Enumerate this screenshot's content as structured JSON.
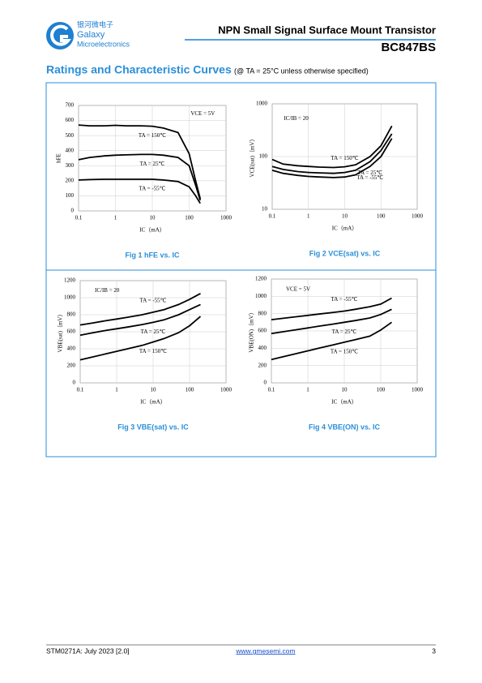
{
  "header": {
    "logo_cn": "银河微电子",
    "logo_en1": "Galaxy",
    "logo_en2": "Microelectronics",
    "title": "NPN Small Signal Surface Mount Transistor",
    "part": "BC847BS"
  },
  "section": {
    "title": "Ratings and Characteristic Curves",
    "condition": "(@ TA = 25°C unless otherwise specified)"
  },
  "chart_data": [
    {
      "type": "line",
      "title": "Fig 1   hFE vs. IC",
      "x_label": "IC（mA）",
      "y_label": "hFE",
      "annotation": "VCE = 5V",
      "xscale": "log",
      "xlim": [
        0.1,
        1000
      ],
      "xticks": [
        0.1,
        1,
        10,
        100,
        1000
      ],
      "ylim": [
        0,
        700
      ],
      "yticks": [
        0,
        100,
        200,
        300,
        400,
        500,
        600,
        700
      ],
      "grid": true,
      "x": [
        0.1,
        0.2,
        0.5,
        1,
        2,
        5,
        10,
        20,
        50,
        100,
        150,
        200
      ],
      "series": [
        {
          "name": "TA = 150℃",
          "color": "#000000",
          "values": [
            570,
            565,
            565,
            568,
            565,
            565,
            562,
            550,
            520,
            380,
            200,
            80
          ]
        },
        {
          "name": "TA = 25℃",
          "color": "#000000",
          "values": [
            340,
            355,
            365,
            370,
            372,
            375,
            375,
            370,
            355,
            300,
            170,
            70
          ]
        },
        {
          "name": "TA = -55℃",
          "color": "#000000",
          "values": [
            205,
            208,
            210,
            210,
            210,
            210,
            210,
            205,
            195,
            160,
            100,
            50
          ]
        }
      ]
    },
    {
      "type": "line",
      "title": "Fig 2   VCE(sat) vs. IC",
      "x_label": "IC（mA）",
      "y_label": "VCE(sat)（mV）",
      "annotation": "IC/IB = 20",
      "xscale": "log",
      "yscale": "log",
      "xlim": [
        0.1,
        1000
      ],
      "xticks": [
        0.1,
        1,
        10,
        100,
        1000
      ],
      "ylim": [
        10,
        1000
      ],
      "yticks": [
        10,
        100,
        1000
      ],
      "grid": true,
      "x": [
        0.1,
        0.2,
        0.5,
        1,
        2,
        5,
        10,
        20,
        50,
        100,
        200
      ],
      "series": [
        {
          "name": "TA = 150℃",
          "color": "#000000",
          "values": [
            88,
            72,
            67,
            65,
            63,
            62,
            64,
            70,
            100,
            160,
            380
          ]
        },
        {
          "name": "TA = 25℃",
          "color": "#000000",
          "values": [
            65,
            57,
            52,
            50,
            49,
            48,
            50,
            55,
            80,
            130,
            270
          ]
        },
        {
          "name": "TA = -55℃",
          "color": "#000000",
          "values": [
            55,
            48,
            44,
            42,
            41,
            40,
            41,
            45,
            65,
            100,
            220
          ]
        }
      ]
    },
    {
      "type": "line",
      "title": "Fig 3   VBE(sat) vs. IC",
      "x_label": "IC（mA）",
      "y_label": "VBE(sat)（mV）",
      "annotation": "IC/IB = 20",
      "xscale": "log",
      "xlim": [
        0.1,
        1000
      ],
      "xticks": [
        0.1,
        1,
        10,
        100,
        1000
      ],
      "ylim": [
        0,
        1200
      ],
      "yticks": [
        0,
        200,
        400,
        600,
        800,
        1000,
        1200
      ],
      "grid": true,
      "x": [
        0.1,
        0.2,
        0.5,
        1,
        2,
        5,
        10,
        20,
        50,
        100,
        200
      ],
      "series": [
        {
          "name": "TA = -55℃",
          "color": "#000000",
          "values": [
            680,
            700,
            730,
            750,
            770,
            800,
            830,
            860,
            920,
            980,
            1050
          ]
        },
        {
          "name": "TA = 25℃",
          "color": "#000000",
          "values": [
            560,
            585,
            615,
            635,
            655,
            685,
            710,
            740,
            800,
            860,
            920
          ]
        },
        {
          "name": "TA = 150℃",
          "color": "#000000",
          "values": [
            270,
            300,
            340,
            370,
            400,
            440,
            480,
            520,
            590,
            670,
            780
          ]
        }
      ]
    },
    {
      "type": "line",
      "title": "Fig 4   VBE(ON) vs. IC",
      "x_label": "IC（mA）",
      "y_label": "VBE(ON)（mV）",
      "annotation": "VCE = 5V",
      "xscale": "log",
      "xlim": [
        0.1,
        1000
      ],
      "xticks": [
        0.1,
        1,
        10,
        100,
        1000
      ],
      "ylim": [
        0,
        1200
      ],
      "yticks": [
        0,
        200,
        400,
        600,
        800,
        1000,
        1200
      ],
      "grid": true,
      "x": [
        0.1,
        0.2,
        0.5,
        1,
        2,
        5,
        10,
        20,
        50,
        100,
        200
      ],
      "series": [
        {
          "name": "TA = -55℃",
          "color": "#000000",
          "values": [
            730,
            745,
            765,
            780,
            795,
            815,
            830,
            850,
            880,
            910,
            980
          ]
        },
        {
          "name": "TA = 25℃",
          "color": "#000000",
          "values": [
            570,
            590,
            615,
            635,
            655,
            680,
            700,
            720,
            750,
            790,
            850
          ]
        },
        {
          "name": "TA = 150℃",
          "color": "#000000",
          "values": [
            270,
            300,
            340,
            370,
            400,
            440,
            470,
            500,
            540,
            610,
            700
          ]
        }
      ]
    }
  ],
  "footer": {
    "doc": "STM0271A: July 2023 [2.0]",
    "url": "www.gmesemi.com",
    "page": "3"
  }
}
